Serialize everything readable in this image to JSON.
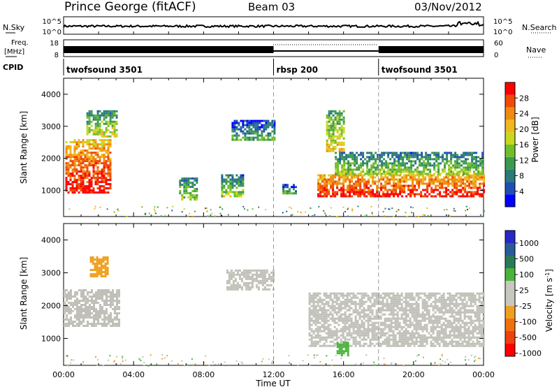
{
  "header": {
    "station": "Prince George (fitACF)",
    "beam": "Beam 03",
    "date": "03/Nov/2012"
  },
  "strip_labels": {
    "nsky": "N.Sky",
    "nsearch": "N.Search",
    "freq_line1": "Freq.",
    "freq_line2": "[MHz]",
    "nave": "Nave",
    "cpid": "CPID"
  },
  "strip_ticks": {
    "nsky_left": [
      "10^5",
      "10^0"
    ],
    "nsky_right": [
      "10^5",
      "10^0"
    ],
    "freq_left": [
      "18",
      "8"
    ],
    "nave_right": [
      "60",
      "0"
    ]
  },
  "cpid_segments": [
    {
      "label": "twofsound 3501",
      "start_hour": 0,
      "end_hour": 12
    },
    {
      "label": "rbsp 200",
      "start_hour": 12,
      "end_hour": 18
    },
    {
      "label": "twofsound 3501",
      "start_hour": 18,
      "end_hour": 24
    }
  ],
  "colors": {
    "power_scale": [
      "#0000ff",
      "#1e4fb4",
      "#2a7a78",
      "#3a9a50",
      "#6fbf2a",
      "#c8d81e",
      "#f0b81e",
      "#f08a10",
      "#f04a0a",
      "#ff0000"
    ],
    "velocity_scale": [
      "#2828c8",
      "#2a5a9a",
      "#2a7a58",
      "#4ab43a",
      "#c8c8c0",
      "#c8c8c0",
      "#f0a020",
      "#f07010",
      "#f04010",
      "#ff0000"
    ],
    "noise_line": "#000000",
    "ground_scatter": "#c0c0b8"
  },
  "chart_data": [
    {
      "type": "heatmap",
      "panel": "power",
      "xlabel": "Time UT",
      "ylabel": "Slant Range [km]",
      "x_ticks": [
        "00:00",
        "04:00",
        "08:00",
        "12:00",
        "16:00",
        "20:00",
        "00:00"
      ],
      "x_range_hours": [
        0,
        24
      ],
      "y_ticks": [
        1000,
        2000,
        3000,
        4000
      ],
      "ylim": [
        180,
        4500
      ],
      "colorbar": {
        "label": "Power [dB]",
        "ticks": [
          4,
          8,
          12,
          16,
          20,
          24,
          28
        ],
        "range": [
          0,
          32
        ]
      },
      "regions": [
        {
          "t0": 0.1,
          "t1": 2.7,
          "r0": 900,
          "r1": 2600,
          "power": 26,
          "note": "red band"
        },
        {
          "t0": 1.3,
          "t1": 3.0,
          "r0": 2700,
          "r1": 3500,
          "power": 14
        },
        {
          "t0": 6.6,
          "t1": 7.6,
          "r0": 700,
          "r1": 1400,
          "power": 12
        },
        {
          "t0": 9.0,
          "t1": 10.2,
          "r0": 800,
          "r1": 1500,
          "power": 12
        },
        {
          "t0": 9.6,
          "t1": 12.0,
          "r0": 2600,
          "r1": 3200,
          "power": 8
        },
        {
          "t0": 12.5,
          "t1": 13.3,
          "r0": 900,
          "r1": 1200,
          "power": 8
        },
        {
          "t0": 14.5,
          "t1": 24.0,
          "r0": 800,
          "r1": 1500,
          "power": 26,
          "note": "red band"
        },
        {
          "t0": 15.0,
          "t1": 16.0,
          "r0": 2200,
          "r1": 3500,
          "power": 16
        },
        {
          "t0": 15.5,
          "t1": 24.0,
          "r0": 1500,
          "r1": 2200,
          "power": 12
        }
      ]
    },
    {
      "type": "heatmap",
      "panel": "velocity",
      "xlabel": "Time UT",
      "ylabel": "Slant Range [km]",
      "x_ticks": [
        "00:00",
        "04:00",
        "08:00",
        "12:00",
        "16:00",
        "20:00",
        "00:00"
      ],
      "x_range_hours": [
        0,
        24
      ],
      "y_ticks": [
        1000,
        2000,
        3000,
        4000
      ],
      "ylim": [
        180,
        4500
      ],
      "colorbar": {
        "label": "Velocity [m s^-1]",
        "ticks": [
          1000,
          500,
          100,
          25,
          -25,
          -100,
          -500,
          -1000
        ]
      },
      "regions": [
        {
          "t0": 0.0,
          "t1": 3.2,
          "r0": 1400,
          "r1": 2500,
          "velocity": 0,
          "note": "ground scatter"
        },
        {
          "t0": 1.5,
          "t1": 2.5,
          "r0": 2900,
          "r1": 3500,
          "velocity": -200
        },
        {
          "t0": 9.3,
          "t1": 12.0,
          "r0": 2500,
          "r1": 3100,
          "velocity": 0
        },
        {
          "t0": 14.0,
          "t1": 24.0,
          "r0": 800,
          "r1": 2400,
          "velocity": 0,
          "note": "ground scatter"
        },
        {
          "t0": 15.6,
          "t1": 16.3,
          "r0": 500,
          "r1": 900,
          "velocity": 150
        }
      ]
    }
  ]
}
